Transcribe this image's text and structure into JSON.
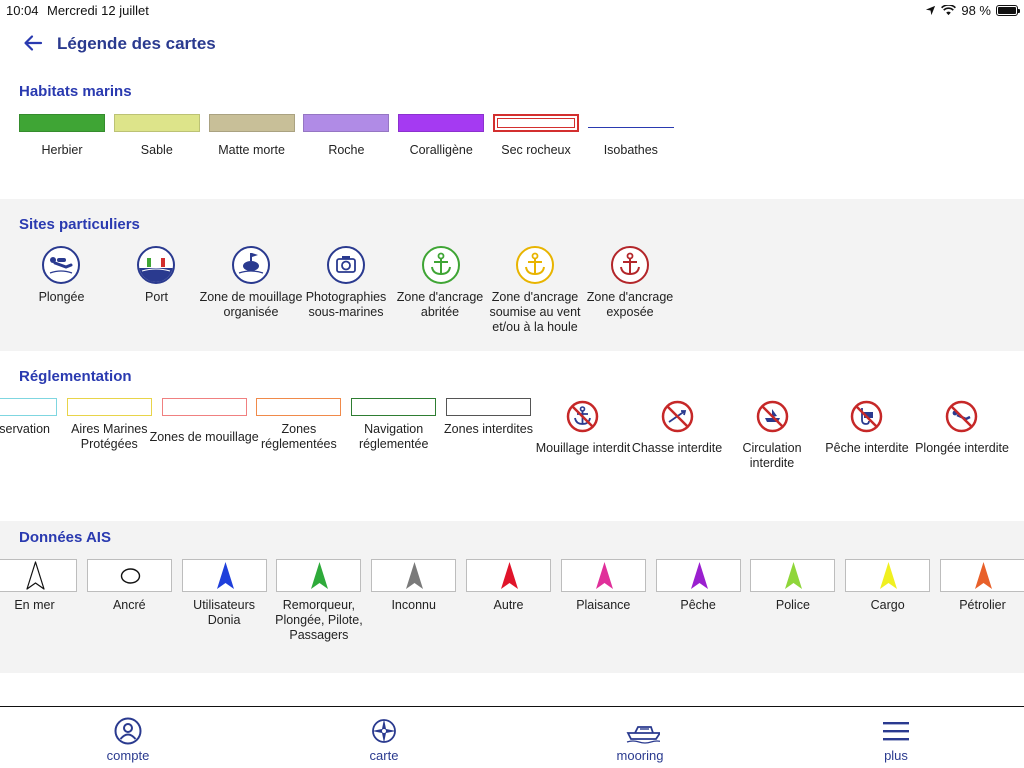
{
  "status": {
    "time": "10:04",
    "date": "Mercredi 12 juillet",
    "battery": "98 %",
    "battery_level": 0.98
  },
  "header": {
    "title": "Légende des cartes"
  },
  "habitats": {
    "title": "Habitats marins",
    "items": [
      {
        "label": "Herbier",
        "color": "#3fa535"
      },
      {
        "label": "Sable",
        "color": "#dde48a"
      },
      {
        "label": "Matte morte",
        "color": "#c8bf98"
      },
      {
        "label": "Roche",
        "color": "#b08be6"
      },
      {
        "label": "Coralligène",
        "color": "#a53af2"
      },
      {
        "label": "Sec rocheux",
        "color": "#d32f2f"
      },
      {
        "label": "Isobathes",
        "color": "#2a3ab0"
      }
    ]
  },
  "sites": {
    "title": "Sites particuliers",
    "items": [
      {
        "label": "Plongée",
        "icon": "diver-icon"
      },
      {
        "label": "Port",
        "icon": "port-icon"
      },
      {
        "label": "Zone de mouillage organisée",
        "icon": "mooring-buoy-icon"
      },
      {
        "label": "Photographies sous-marines",
        "icon": "camera-icon"
      },
      {
        "label": "Zone d'ancrage abritée",
        "icon": "anchor-green-icon",
        "color": "#3fa535"
      },
      {
        "label": "Zone d'ancrage soumise au vent et/ou à la houle",
        "icon": "anchor-yellow-icon",
        "color": "#e8b400"
      },
      {
        "label": "Zone d'ancrage exposée",
        "icon": "anchor-red-icon",
        "color": "#b3262a"
      }
    ]
  },
  "reglementation": {
    "title": "Réglementation",
    "zones": [
      {
        "label": "one de servation",
        "color": "#7fd6e0"
      },
      {
        "label": "Aires Marines Protégées",
        "color": "#e8d44a"
      },
      {
        "label": "Zones de mouillage",
        "color": "#f08080"
      },
      {
        "label": "Zones réglementées",
        "color": "#f08a4a"
      },
      {
        "label": "Navigation réglementée",
        "color": "#2e7d32"
      },
      {
        "label": "Zones interdites",
        "color": "#555555"
      }
    ],
    "prohibitions": [
      {
        "label": "Mouillage interdit",
        "icon": "no-anchoring-icon"
      },
      {
        "label": "Chasse interdite",
        "icon": "no-hunting-icon"
      },
      {
        "label": "Circulation interdite",
        "icon": "no-navigation-icon"
      },
      {
        "label": "Pêche interdite",
        "icon": "no-fishing-icon"
      },
      {
        "label": "Plongée interdite",
        "icon": "no-diving-icon"
      }
    ]
  },
  "ais": {
    "title": "Données AIS",
    "items": [
      {
        "label": "En mer",
        "color": "#ffffff",
        "shape": "outline-arrow"
      },
      {
        "label": "Ancré",
        "color": "#ffffff",
        "shape": "circle"
      },
      {
        "label": "Utilisateurs Donia",
        "color": "#1f3fdb",
        "shape": "arrow"
      },
      {
        "label": "Remorqueur, Plongée, Pilote, Passagers",
        "color": "#2eaa3a",
        "shape": "arrow"
      },
      {
        "label": "Inconnu",
        "color": "#7a7a7a",
        "shape": "arrow"
      },
      {
        "label": "Autre",
        "color": "#e0142a",
        "shape": "arrow"
      },
      {
        "label": "Plaisance",
        "color": "#e0309a",
        "shape": "arrow"
      },
      {
        "label": "Pêche",
        "color": "#9a1fcf",
        "shape": "arrow"
      },
      {
        "label": "Police",
        "color": "#8fd63a",
        "shape": "arrow"
      },
      {
        "label": "Cargo",
        "color": "#f0f020",
        "shape": "arrow"
      },
      {
        "label": "Pétrolier",
        "color": "#e8602a",
        "shape": "arrow"
      }
    ]
  },
  "tabs": [
    {
      "label": "compte",
      "icon": "user-icon"
    },
    {
      "label": "carte",
      "icon": "compass-icon"
    },
    {
      "label": "mooring",
      "icon": "boat-icon"
    },
    {
      "label": "plus",
      "icon": "menu-icon"
    }
  ]
}
